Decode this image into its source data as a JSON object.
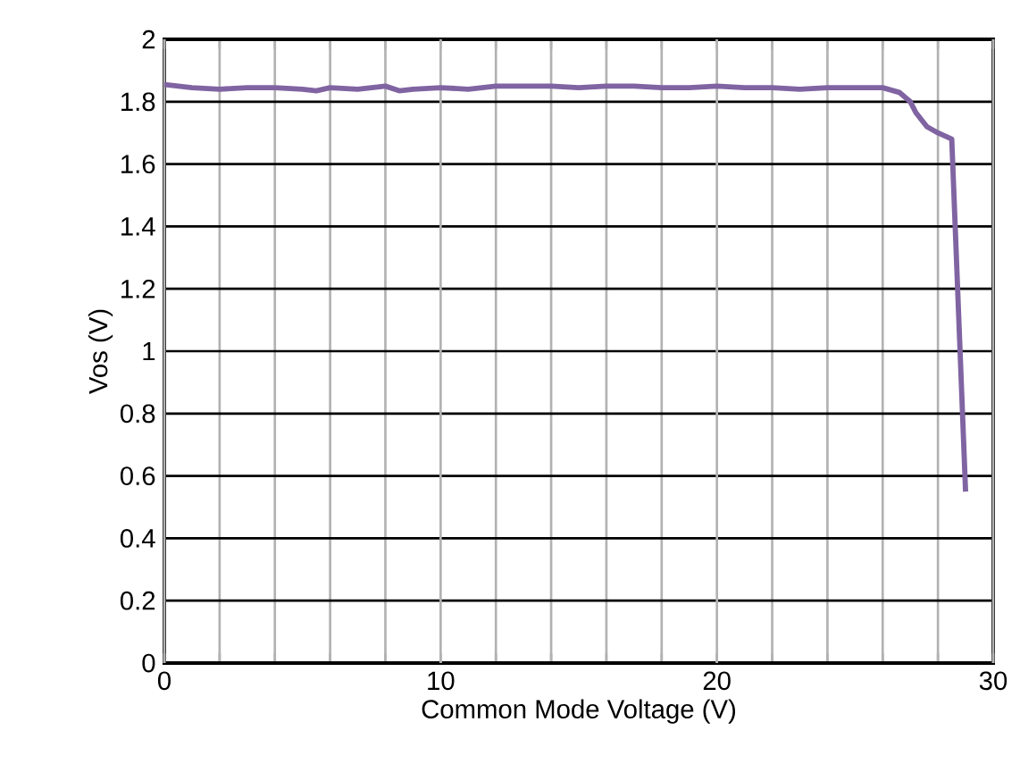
{
  "chart_data": {
    "type": "line",
    "xlabel": "Common Mode Voltage (V)",
    "ylabel": "Vos (V)",
    "xlim": [
      0,
      30
    ],
    "ylim": [
      0,
      2
    ],
    "xticks": [
      0,
      {
        "value": 2,
        "label": null
      },
      {
        "value": 4,
        "label": null
      },
      {
        "value": 6,
        "label": null
      },
      {
        "value": 8,
        "label": null
      },
      10,
      {
        "value": 12,
        "label": null
      },
      {
        "value": 14,
        "label": null
      },
      {
        "value": 16,
        "label": null
      },
      {
        "value": 18,
        "label": null
      },
      20,
      {
        "value": 22,
        "label": null
      },
      {
        "value": 24,
        "label": null
      },
      {
        "value": 26,
        "label": null
      },
      {
        "value": 28,
        "label": null
      },
      30
    ],
    "yticks": [
      0,
      0.2,
      0.4,
      0.6,
      0.8,
      1,
      1.2,
      1.4,
      1.6,
      1.8,
      2
    ],
    "grid": true,
    "marker": "none",
    "line_style": "solid",
    "series": [
      {
        "color": "#8064a2",
        "x": [
          0,
          1,
          2,
          3,
          4,
          5,
          5.5,
          6,
          7,
          8,
          8.5,
          9,
          10,
          11,
          12,
          13,
          14,
          15,
          16,
          17,
          18,
          19,
          20,
          21,
          22,
          23,
          24,
          25,
          26,
          26.6,
          27,
          27.2,
          27.6,
          28,
          28.5,
          29
        ],
        "values": [
          1.855,
          1.845,
          1.84,
          1.845,
          1.845,
          1.84,
          1.835,
          1.845,
          1.84,
          1.85,
          1.835,
          1.84,
          1.845,
          1.84,
          1.85,
          1.85,
          1.85,
          1.845,
          1.85,
          1.85,
          1.845,
          1.845,
          1.85,
          1.845,
          1.845,
          1.84,
          1.845,
          1.845,
          1.845,
          1.83,
          1.8,
          1.765,
          1.72,
          1.7,
          1.68,
          0.55
        ]
      }
    ]
  }
}
